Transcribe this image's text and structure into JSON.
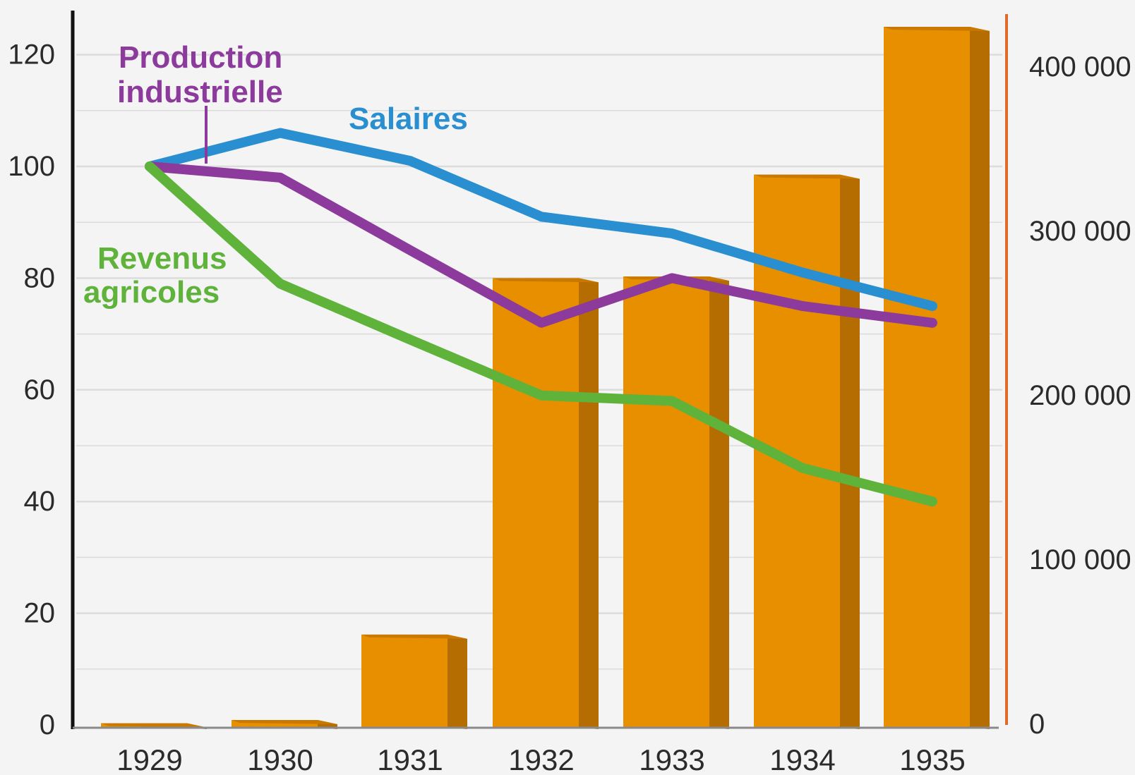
{
  "chart_data": {
    "type": "bar",
    "categories": [
      "1929",
      "1930",
      "1931",
      "1932",
      "1933",
      "1934",
      "1935"
    ],
    "y_left": {
      "ylim": [
        0,
        125
      ],
      "ticks": [
        0,
        20,
        40,
        60,
        80,
        100,
        120
      ],
      "tick_labels": [
        "0",
        "20",
        "40",
        "60",
        "80",
        "100",
        "120"
      ]
    },
    "y_right": {
      "ylim": [
        0,
        425000
      ],
      "ticks": [
        0,
        100000,
        200000,
        300000,
        400000
      ],
      "tick_labels": [
        "0",
        "100 000",
        "200 000",
        "300 000",
        "400 000"
      ]
    },
    "bars": {
      "axis": "right",
      "color": "#e88f00",
      "values": [
        1000,
        3000,
        55000,
        272000,
        273000,
        335000,
        425000
      ]
    },
    "series": [
      {
        "name": "Salaires",
        "axis": "left",
        "color": "#2a8fd1",
        "values": [
          100,
          106,
          101,
          91,
          88,
          81,
          75
        ]
      },
      {
        "name": "Production industrielle",
        "axis": "left",
        "color": "#8c3a9c",
        "values": [
          100,
          98,
          85,
          72,
          80,
          75,
          72
        ]
      },
      {
        "name": "Revenus agricoles",
        "axis": "left",
        "color": "#5fb33b",
        "values": [
          100,
          79,
          69,
          59,
          58,
          46,
          40
        ]
      }
    ],
    "labels": {
      "production_line1": "Production",
      "production_line2": "industrielle",
      "salaires": "Salaires",
      "revenus_line1": "Revenus",
      "revenus_line2": "agricoles"
    },
    "grid": true,
    "gridline_color": "#dcdcdc",
    "axis_accent_color": "#e06a2a"
  }
}
